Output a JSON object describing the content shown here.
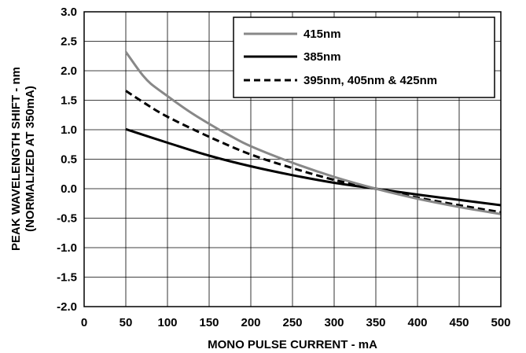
{
  "chart_data": {
    "type": "line",
    "xlabel": "MONO PULSE CURRENT - mA",
    "ylabel_line1": "PEAK WAVELENGTH SHIFT - nm",
    "ylabel_line2": "(NORMALIZED AT 350mA)",
    "xlim": [
      0,
      500
    ],
    "ylim": [
      -2.0,
      3.0
    ],
    "x_ticks": [
      "0",
      "50",
      "100",
      "150",
      "200",
      "250",
      "300",
      "350",
      "400",
      "450",
      "500"
    ],
    "y_ticks": [
      "3.0",
      "2.5",
      "2.0",
      "1.5",
      "1.0",
      "0.5",
      "0.0",
      "-0.5",
      "-1.0",
      "-1.5",
      "-2.0"
    ],
    "grid": true,
    "legend_position": "top-right",
    "series": [
      {
        "name": "415nm",
        "color": "#888888",
        "style": "solid",
        "points": [
          [
            50,
            2.32
          ],
          [
            60,
            2.12
          ],
          [
            70,
            1.93
          ],
          [
            80,
            1.78
          ],
          [
            100,
            1.57
          ],
          [
            125,
            1.32
          ],
          [
            150,
            1.1
          ],
          [
            175,
            0.9
          ],
          [
            200,
            0.72
          ],
          [
            250,
            0.44
          ],
          [
            300,
            0.2
          ],
          [
            350,
            0.0
          ],
          [
            400,
            -0.17
          ],
          [
            450,
            -0.31
          ],
          [
            500,
            -0.43
          ]
        ]
      },
      {
        "name": "385nm",
        "color": "#000000",
        "style": "solid",
        "points": [
          [
            50,
            1.01
          ],
          [
            100,
            0.78
          ],
          [
            150,
            0.56
          ],
          [
            200,
            0.38
          ],
          [
            250,
            0.23
          ],
          [
            300,
            0.1
          ],
          [
            350,
            0.0
          ],
          [
            400,
            -0.1
          ],
          [
            450,
            -0.19
          ],
          [
            500,
            -0.28
          ]
        ]
      },
      {
        "name": "395nm, 405nm & 425nm",
        "color": "#000000",
        "style": "dashed",
        "points": [
          [
            50,
            1.66
          ],
          [
            75,
            1.43
          ],
          [
            100,
            1.22
          ],
          [
            150,
            0.88
          ],
          [
            200,
            0.58
          ],
          [
            250,
            0.35
          ],
          [
            300,
            0.15
          ],
          [
            350,
            0.0
          ],
          [
            400,
            -0.15
          ],
          [
            450,
            -0.28
          ],
          [
            500,
            -0.4
          ]
        ]
      }
    ]
  }
}
